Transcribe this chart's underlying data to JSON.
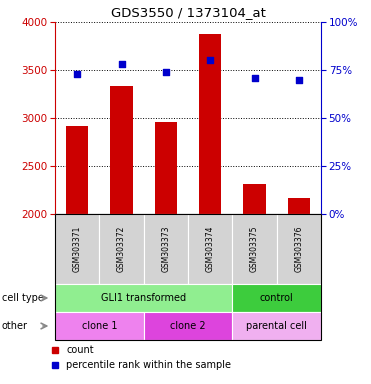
{
  "title": "GDS3550 / 1373104_at",
  "samples": [
    "GSM303371",
    "GSM303372",
    "GSM303373",
    "GSM303374",
    "GSM303375",
    "GSM303376"
  ],
  "counts": [
    2920,
    3330,
    2960,
    3870,
    2310,
    2165
  ],
  "percentile_ranks": [
    73,
    78,
    74,
    80,
    71,
    70
  ],
  "ylim_left": [
    2000,
    4000
  ],
  "ylim_right": [
    0,
    100
  ],
  "bar_color": "#cc0000",
  "dot_color": "#0000cc",
  "bar_width": 0.5,
  "grid_ticks_left": [
    2000,
    2500,
    3000,
    3500,
    4000
  ],
  "grid_ticks_right": [
    0,
    25,
    50,
    75,
    100
  ],
  "cell_type_groups": [
    {
      "label": "GLI1 transformed",
      "start": 0,
      "end": 4,
      "color": "#90ee90"
    },
    {
      "label": "control",
      "start": 4,
      "end": 6,
      "color": "#3dcc3d"
    }
  ],
  "other_groups": [
    {
      "label": "clone 1",
      "start": 0,
      "end": 2,
      "color": "#ee82ee"
    },
    {
      "label": "clone 2",
      "start": 2,
      "end": 4,
      "color": "#dd44dd"
    },
    {
      "label": "parental cell",
      "start": 4,
      "end": 6,
      "color": "#f0b0f0"
    }
  ],
  "bg_color": "#ffffff",
  "bar_base": 2000,
  "xlabel_color": "#cc0000",
  "ylabel_right_color": "#0000cc"
}
